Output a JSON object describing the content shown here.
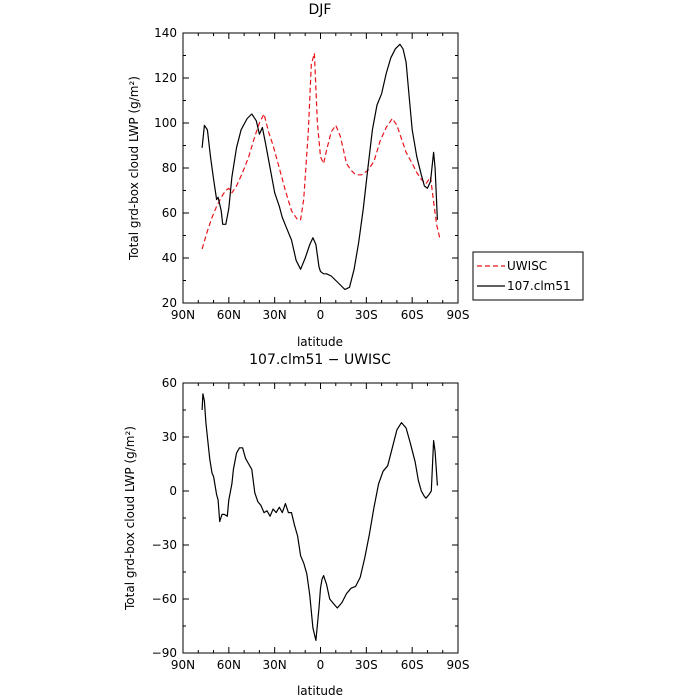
{
  "chart_data": [
    {
      "type": "line",
      "title": "DJF",
      "xlabel": "latitude",
      "ylabel": "Total grd-box cloud LWP (g/m²)",
      "xlim": [
        90,
        -90
      ],
      "ylim": [
        20,
        140
      ],
      "x_ticks": [
        90,
        60,
        30,
        0,
        -30,
        -60,
        -90
      ],
      "x_tick_labels": [
        "90N",
        "60N",
        "30N",
        "0",
        "30S",
        "60S",
        "90S"
      ],
      "y_ticks": [
        20,
        40,
        60,
        80,
        100,
        120,
        140
      ],
      "y_tick_labels": [
        "20",
        "40",
        "60",
        "80",
        "100",
        "120",
        "140"
      ],
      "legend": "right-bottom",
      "grid": false,
      "series": [
        {
          "name": "UWISC",
          "color": "#e8141c",
          "dash": "dashed",
          "x": [
            77.5,
            74,
            71,
            68,
            64,
            62,
            60,
            58,
            55,
            51,
            47,
            43,
            40,
            37,
            34,
            31,
            27,
            23,
            19,
            15,
            13,
            11,
            8,
            6,
            4,
            2,
            0,
            -2,
            -4,
            -7,
            -10,
            -13,
            -17,
            -20,
            -23,
            -27,
            -31,
            -35,
            -39,
            -43,
            -47,
            -50,
            -53,
            -56,
            -60,
            -63,
            -66,
            -69,
            -72,
            -74,
            -76,
            -78
          ],
          "y": [
            44,
            52,
            58,
            63,
            68,
            70,
            71,
            69,
            72,
            78,
            85,
            94,
            100,
            104,
            96,
            90,
            80,
            70,
            61,
            57,
            57,
            66,
            96,
            126,
            131,
            100,
            85,
            82,
            88,
            96,
            99,
            94,
            82,
            79,
            77,
            77,
            79,
            83,
            92,
            98,
            102,
            99,
            93,
            87,
            82,
            78,
            75,
            73,
            76,
            65,
            55,
            49
          ]
        },
        {
          "name": "107.clm51",
          "color": "#000000",
          "dash": "solid",
          "x": [
            77.5,
            76,
            74,
            72,
            70,
            68,
            67,
            65,
            64,
            62,
            60,
            58,
            55,
            52,
            48,
            45,
            42,
            40,
            38,
            36,
            33,
            30,
            27,
            25,
            22,
            19,
            16,
            13,
            10,
            7,
            5,
            3,
            1,
            0,
            -2,
            -4,
            -7,
            -10,
            -13,
            -16,
            -19,
            -22,
            -25,
            -28,
            -31,
            -34,
            -37,
            -40,
            -43,
            -46,
            -49,
            -52,
            -54,
            -56,
            -58,
            -60,
            -63,
            -66,
            -68,
            -70,
            -72,
            -74,
            -75,
            -76.5
          ],
          "y": [
            89,
            99,
            97,
            85,
            75,
            66,
            67,
            61,
            55,
            55,
            62,
            76,
            89,
            97,
            102,
            104,
            101,
            95,
            98,
            91,
            80,
            69,
            63,
            58,
            53,
            48,
            39,
            35,
            40,
            46,
            49,
            46,
            36,
            34,
            33,
            33,
            32,
            30,
            28,
            26,
            27,
            35,
            47,
            62,
            80,
            97,
            108,
            113,
            122,
            129,
            133,
            135,
            133,
            127,
            112,
            97,
            85,
            77,
            72,
            71,
            74,
            87,
            80,
            57
          ]
        }
      ]
    },
    {
      "type": "line",
      "title": "107.clm51 − UWISC",
      "xlabel": "latitude",
      "ylabel": "Total grd-box cloud LWP (g/m²)",
      "xlim": [
        90,
        -90
      ],
      "ylim": [
        -90,
        60
      ],
      "x_ticks": [
        90,
        60,
        30,
        0,
        -30,
        -60,
        -90
      ],
      "x_tick_labels": [
        "90N",
        "60N",
        "30N",
        "0",
        "30S",
        "60S",
        "90S"
      ],
      "y_ticks": [
        -90,
        -60,
        -30,
        0,
        30,
        60
      ],
      "y_tick_labels": [
        "−90",
        "−60",
        "−30",
        "0",
        "30",
        "60"
      ],
      "grid": false,
      "series": [
        {
          "color": "#000000",
          "dash": "solid",
          "x": [
            77.5,
            77,
            76,
            75,
            74,
            72.5,
            71,
            70,
            68,
            67,
            66,
            64.5,
            63,
            61,
            60,
            58,
            57,
            55,
            53,
            51,
            49,
            47,
            45,
            43,
            41,
            39,
            37,
            35,
            33,
            31,
            29,
            27,
            25,
            23,
            21,
            19,
            17,
            15,
            13,
            11,
            9,
            7,
            5,
            3,
            1,
            0,
            -1,
            -2,
            -4,
            -6,
            -8,
            -11,
            -14,
            -17,
            -20,
            -23,
            -26,
            -29,
            -32,
            -35,
            -38,
            -41,
            -44,
            -47,
            -50,
            -53,
            -56,
            -59,
            -62,
            -64,
            -66,
            -68,
            -69,
            -71,
            -72.5,
            -74,
            -75,
            -76.5
          ],
          "y": [
            45,
            54,
            50,
            38,
            30,
            18,
            10,
            8,
            -2,
            -5,
            -17,
            -13,
            -13,
            -14,
            -5,
            4,
            12,
            21,
            24,
            24,
            18,
            15,
            12,
            -1,
            -6,
            -8,
            -12,
            -11,
            -14,
            -10,
            -12,
            -9,
            -12,
            -7,
            -12,
            -12,
            -19,
            -25,
            -36,
            -40,
            -46,
            -58,
            -76,
            -83,
            -65,
            -54,
            -49,
            -47,
            -52,
            -60,
            -62,
            -65,
            -62,
            -57,
            -54,
            -53,
            -48,
            -37,
            -24,
            -9,
            4,
            11,
            14,
            24,
            34,
            38,
            35,
            26,
            16,
            6,
            0,
            -3,
            -4,
            -2,
            0,
            28,
            22,
            3
          ]
        }
      ]
    }
  ]
}
